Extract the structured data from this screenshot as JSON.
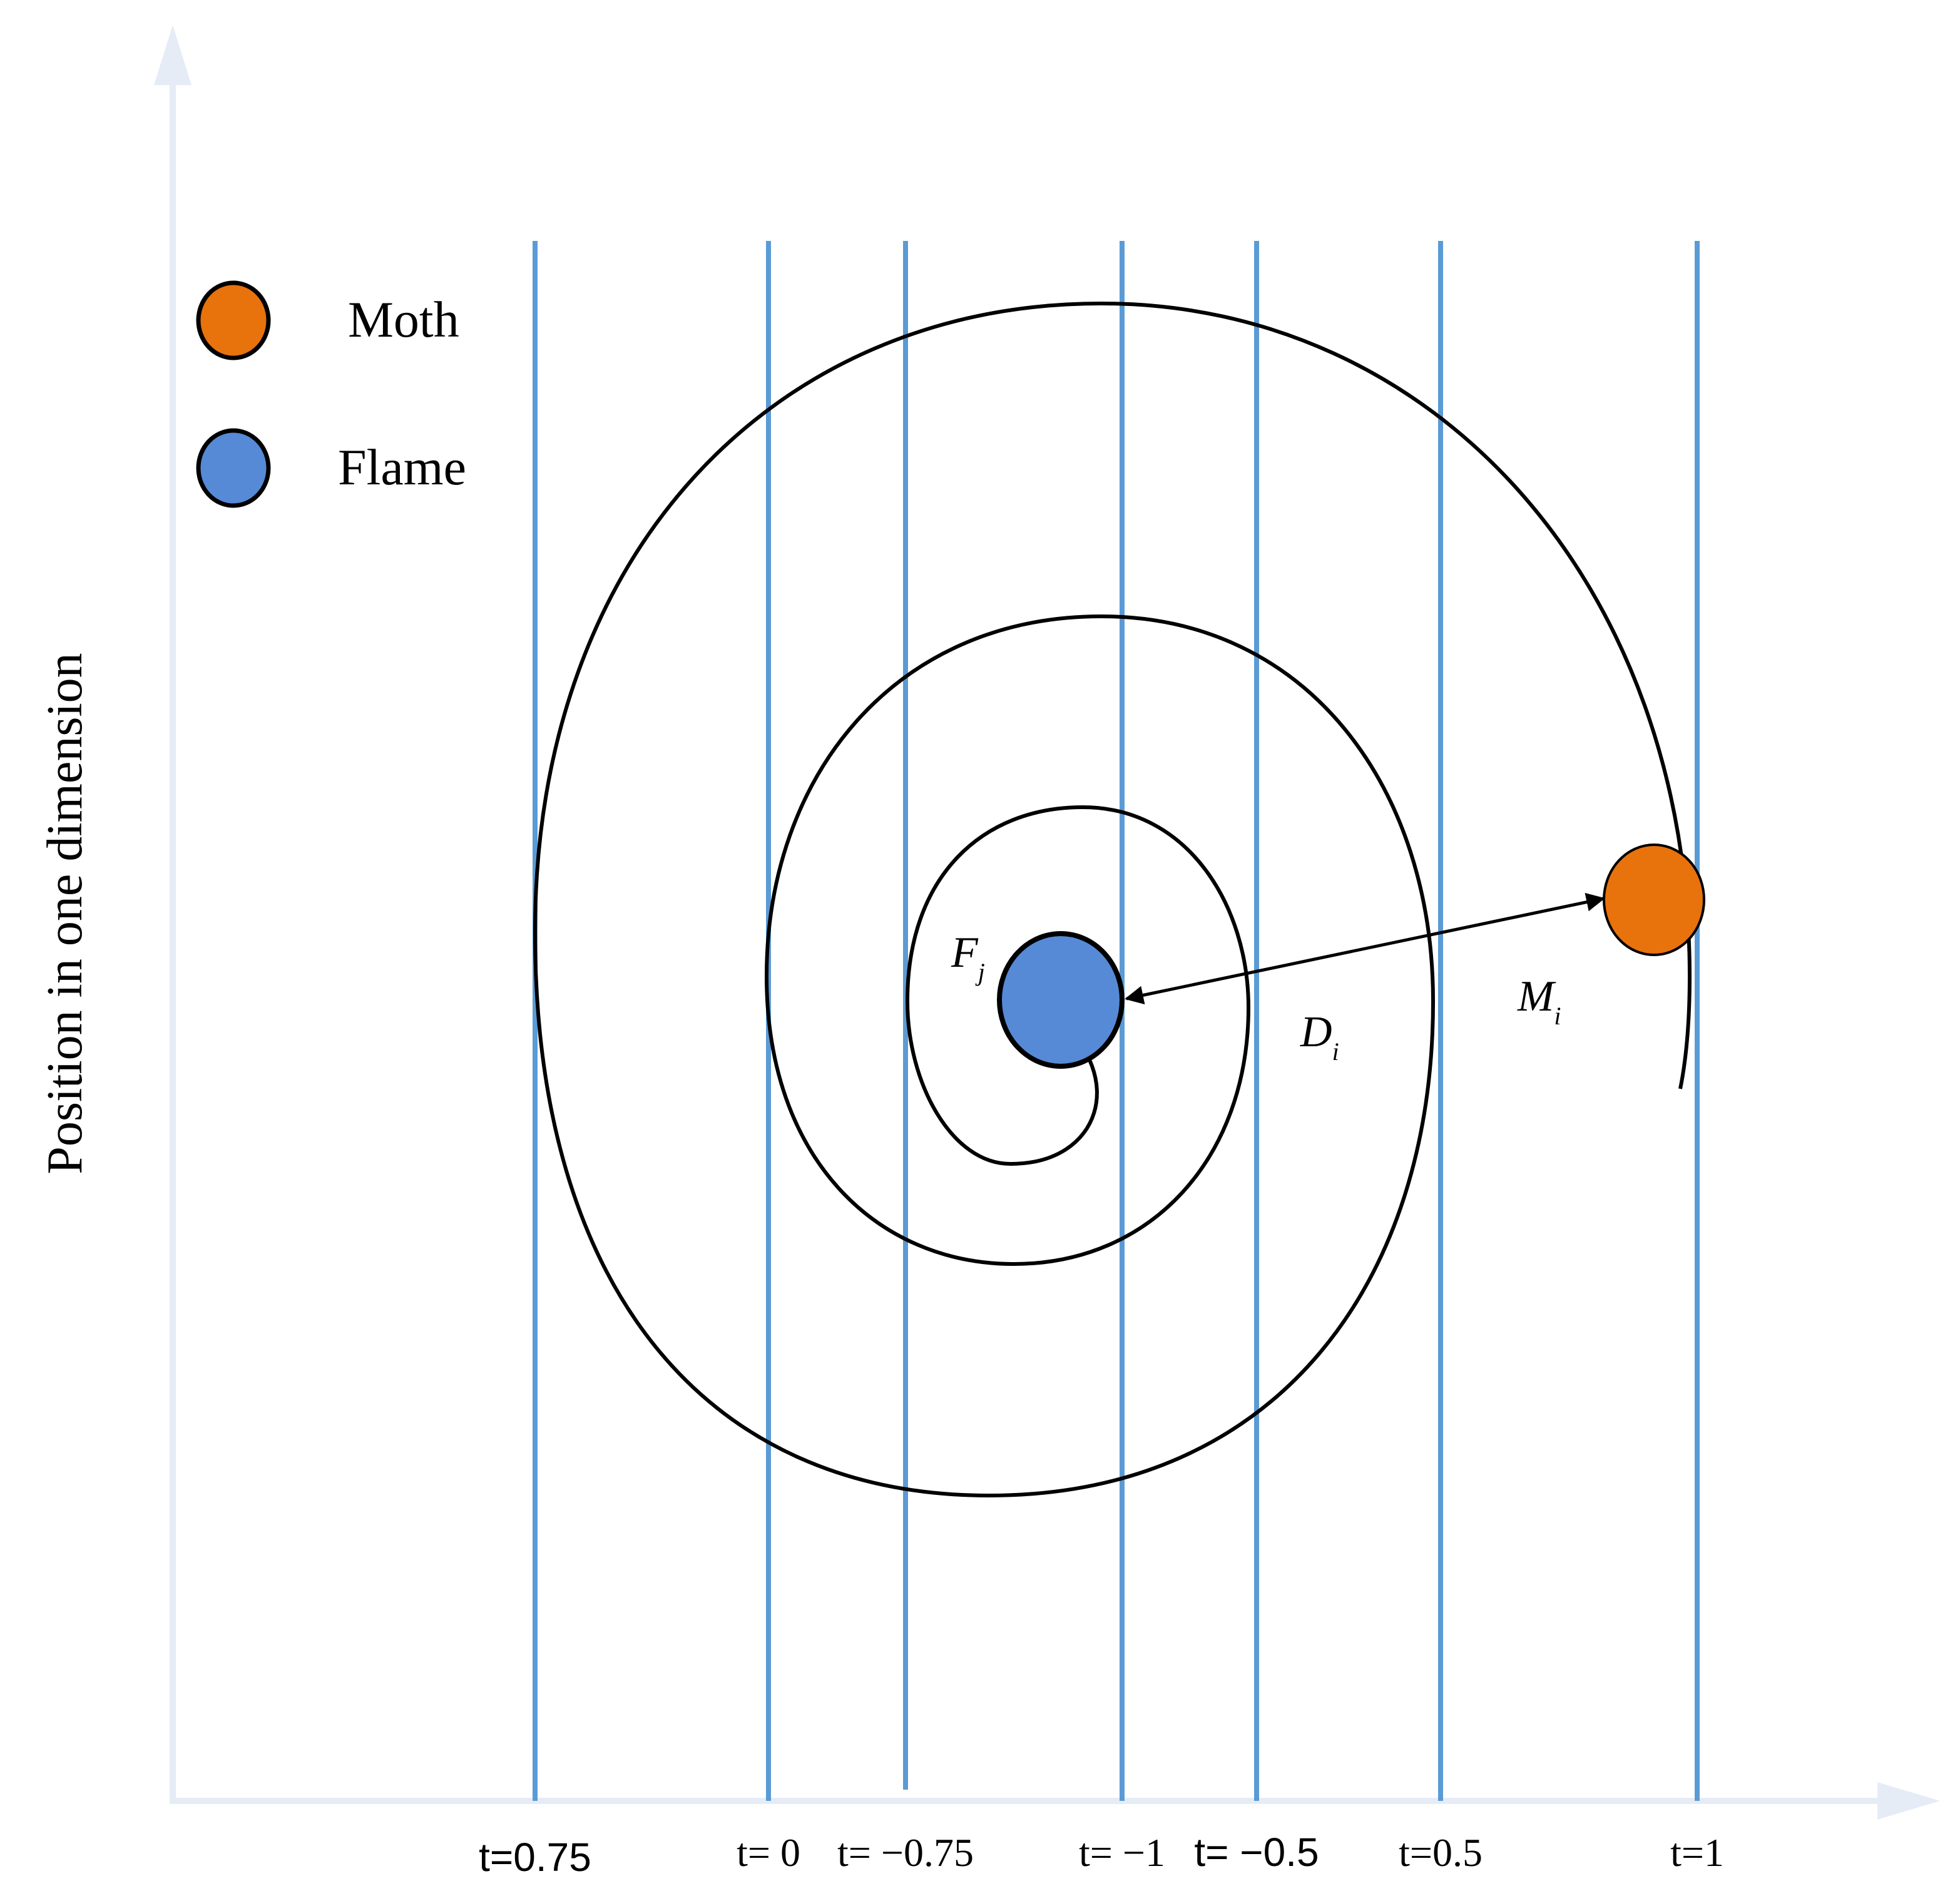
{
  "axis": {
    "ylabel": "Position in one dimension",
    "color": "#e6ecf6"
  },
  "legend": {
    "moth_label": "Moth",
    "flame_label": "Flame"
  },
  "colors": {
    "moth": "#e8720c",
    "flame": "#568ad6",
    "grid_line": "#5b9bd5",
    "spiral": "#000000"
  },
  "annotations": {
    "flame_symbol": "F",
    "flame_subscript": "j",
    "distance_symbol": "D",
    "distance_subscript": "i",
    "moth_symbol": "M",
    "moth_subscript": "i"
  },
  "t_lines": [
    {
      "label": "t=0.75"
    },
    {
      "label": "t= 0"
    },
    {
      "label": "t= −0.75"
    },
    {
      "label": "t= −1"
    },
    {
      "label": "t= −0.5"
    },
    {
      "label": "t=0.5"
    },
    {
      "label": "t=1"
    }
  ]
}
